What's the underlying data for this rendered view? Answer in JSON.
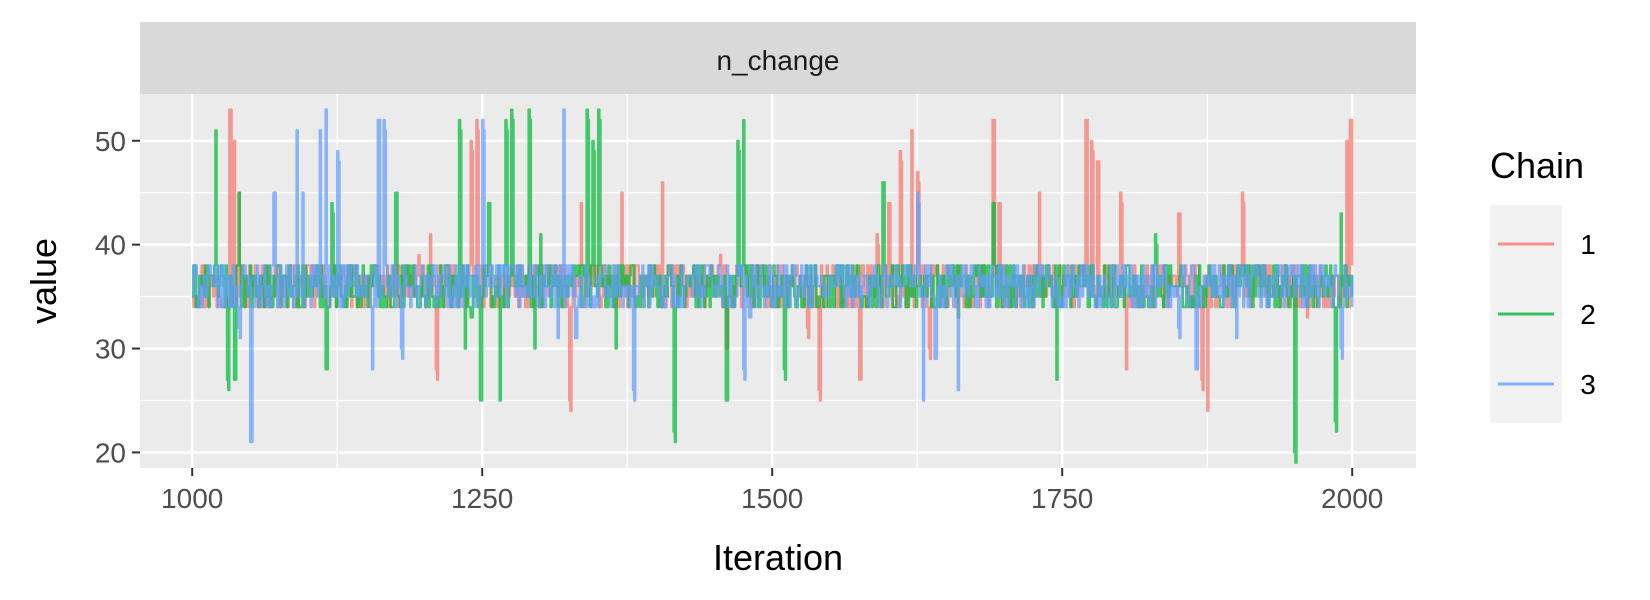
{
  "chart_data": {
    "type": "line",
    "facet_title": "n_change",
    "xlabel": "Iteration",
    "ylabel": "value",
    "xlim": [
      955,
      2055
    ],
    "ylim": [
      18.5,
      54.5
    ],
    "x_ticks": [
      1000,
      1250,
      1500,
      1750,
      2000
    ],
    "x_tick_labels": [
      "1000",
      "1250",
      "1500",
      "1750",
      "2000"
    ],
    "y_ticks": [
      20,
      30,
      40,
      50
    ],
    "y_tick_labels": [
      "20",
      "30",
      "40",
      "50"
    ],
    "grid": true,
    "legend": {
      "title": "Chain",
      "placement": "right"
    },
    "iterations": {
      "start": 1000,
      "end": 2000
    },
    "series": [
      {
        "name": "1",
        "color": "#F8766D",
        "baseline": [
          34,
          38
        ],
        "spikes": [
          [
            1032,
            53
          ],
          [
            1036,
            50
          ],
          [
            1040,
            45
          ],
          [
            1195,
            39
          ],
          [
            1205,
            41
          ],
          [
            1210,
            28
          ],
          [
            1240,
            50
          ],
          [
            1245,
            52
          ],
          [
            1325,
            25
          ],
          [
            1335,
            44
          ],
          [
            1370,
            45
          ],
          [
            1405,
            46
          ],
          [
            1455,
            39
          ],
          [
            1460,
            30
          ],
          [
            1530,
            32
          ],
          [
            1540,
            26
          ],
          [
            1575,
            27
          ],
          [
            1590,
            41
          ],
          [
            1600,
            44
          ],
          [
            1610,
            49
          ],
          [
            1620,
            51
          ],
          [
            1625,
            47
          ],
          [
            1635,
            30
          ],
          [
            1690,
            52
          ],
          [
            1695,
            44
          ],
          [
            1730,
            45
          ],
          [
            1770,
            52
          ],
          [
            1775,
            50
          ],
          [
            1780,
            48
          ],
          [
            1800,
            45
          ],
          [
            1805,
            28
          ],
          [
            1810,
            35
          ],
          [
            1850,
            43
          ],
          [
            1870,
            27
          ],
          [
            1875,
            24
          ],
          [
            1905,
            45
          ],
          [
            1960,
            34
          ],
          [
            1995,
            50
          ],
          [
            1998,
            52
          ]
        ]
      },
      {
        "name": "2",
        "color": "#00BA38",
        "baseline": [
          34,
          38
        ],
        "spikes": [
          [
            1020,
            51
          ],
          [
            1030,
            27
          ],
          [
            1036,
            27
          ],
          [
            1040,
            45
          ],
          [
            1045,
            34
          ],
          [
            1115,
            28
          ],
          [
            1120,
            44
          ],
          [
            1175,
            45
          ],
          [
            1230,
            52
          ],
          [
            1235,
            30
          ],
          [
            1240,
            33
          ],
          [
            1248,
            25
          ],
          [
            1255,
            44
          ],
          [
            1265,
            25
          ],
          [
            1270,
            52
          ],
          [
            1275,
            53
          ],
          [
            1290,
            53
          ],
          [
            1295,
            30
          ],
          [
            1300,
            41
          ],
          [
            1340,
            53
          ],
          [
            1345,
            50
          ],
          [
            1350,
            53
          ],
          [
            1365,
            30
          ],
          [
            1415,
            22
          ],
          [
            1460,
            25
          ],
          [
            1470,
            50
          ],
          [
            1475,
            52
          ],
          [
            1510,
            28
          ],
          [
            1595,
            46
          ],
          [
            1660,
            33
          ],
          [
            1690,
            44
          ],
          [
            1745,
            27
          ],
          [
            1830,
            41
          ],
          [
            1950,
            20
          ],
          [
            1985,
            23
          ],
          [
            1990,
            43
          ]
        ]
      },
      {
        "name": "3",
        "color": "#619CFF",
        "baseline": [
          34,
          38
        ],
        "spikes": [
          [
            1040,
            32
          ],
          [
            1050,
            21
          ],
          [
            1070,
            45
          ],
          [
            1090,
            51
          ],
          [
            1095,
            45
          ],
          [
            1110,
            51
          ],
          [
            1115,
            53
          ],
          [
            1125,
            49
          ],
          [
            1155,
            28
          ],
          [
            1160,
            52
          ],
          [
            1165,
            52
          ],
          [
            1180,
            30
          ],
          [
            1250,
            52
          ],
          [
            1315,
            31
          ],
          [
            1320,
            53
          ],
          [
            1330,
            31
          ],
          [
            1380,
            26
          ],
          [
            1475,
            28
          ],
          [
            1480,
            33
          ],
          [
            1625,
            45
          ],
          [
            1630,
            25
          ],
          [
            1640,
            29
          ],
          [
            1660,
            26
          ],
          [
            1850,
            32
          ],
          [
            1865,
            28
          ],
          [
            1900,
            31
          ],
          [
            1990,
            30
          ],
          [
            2000,
            34
          ]
        ]
      }
    ]
  }
}
